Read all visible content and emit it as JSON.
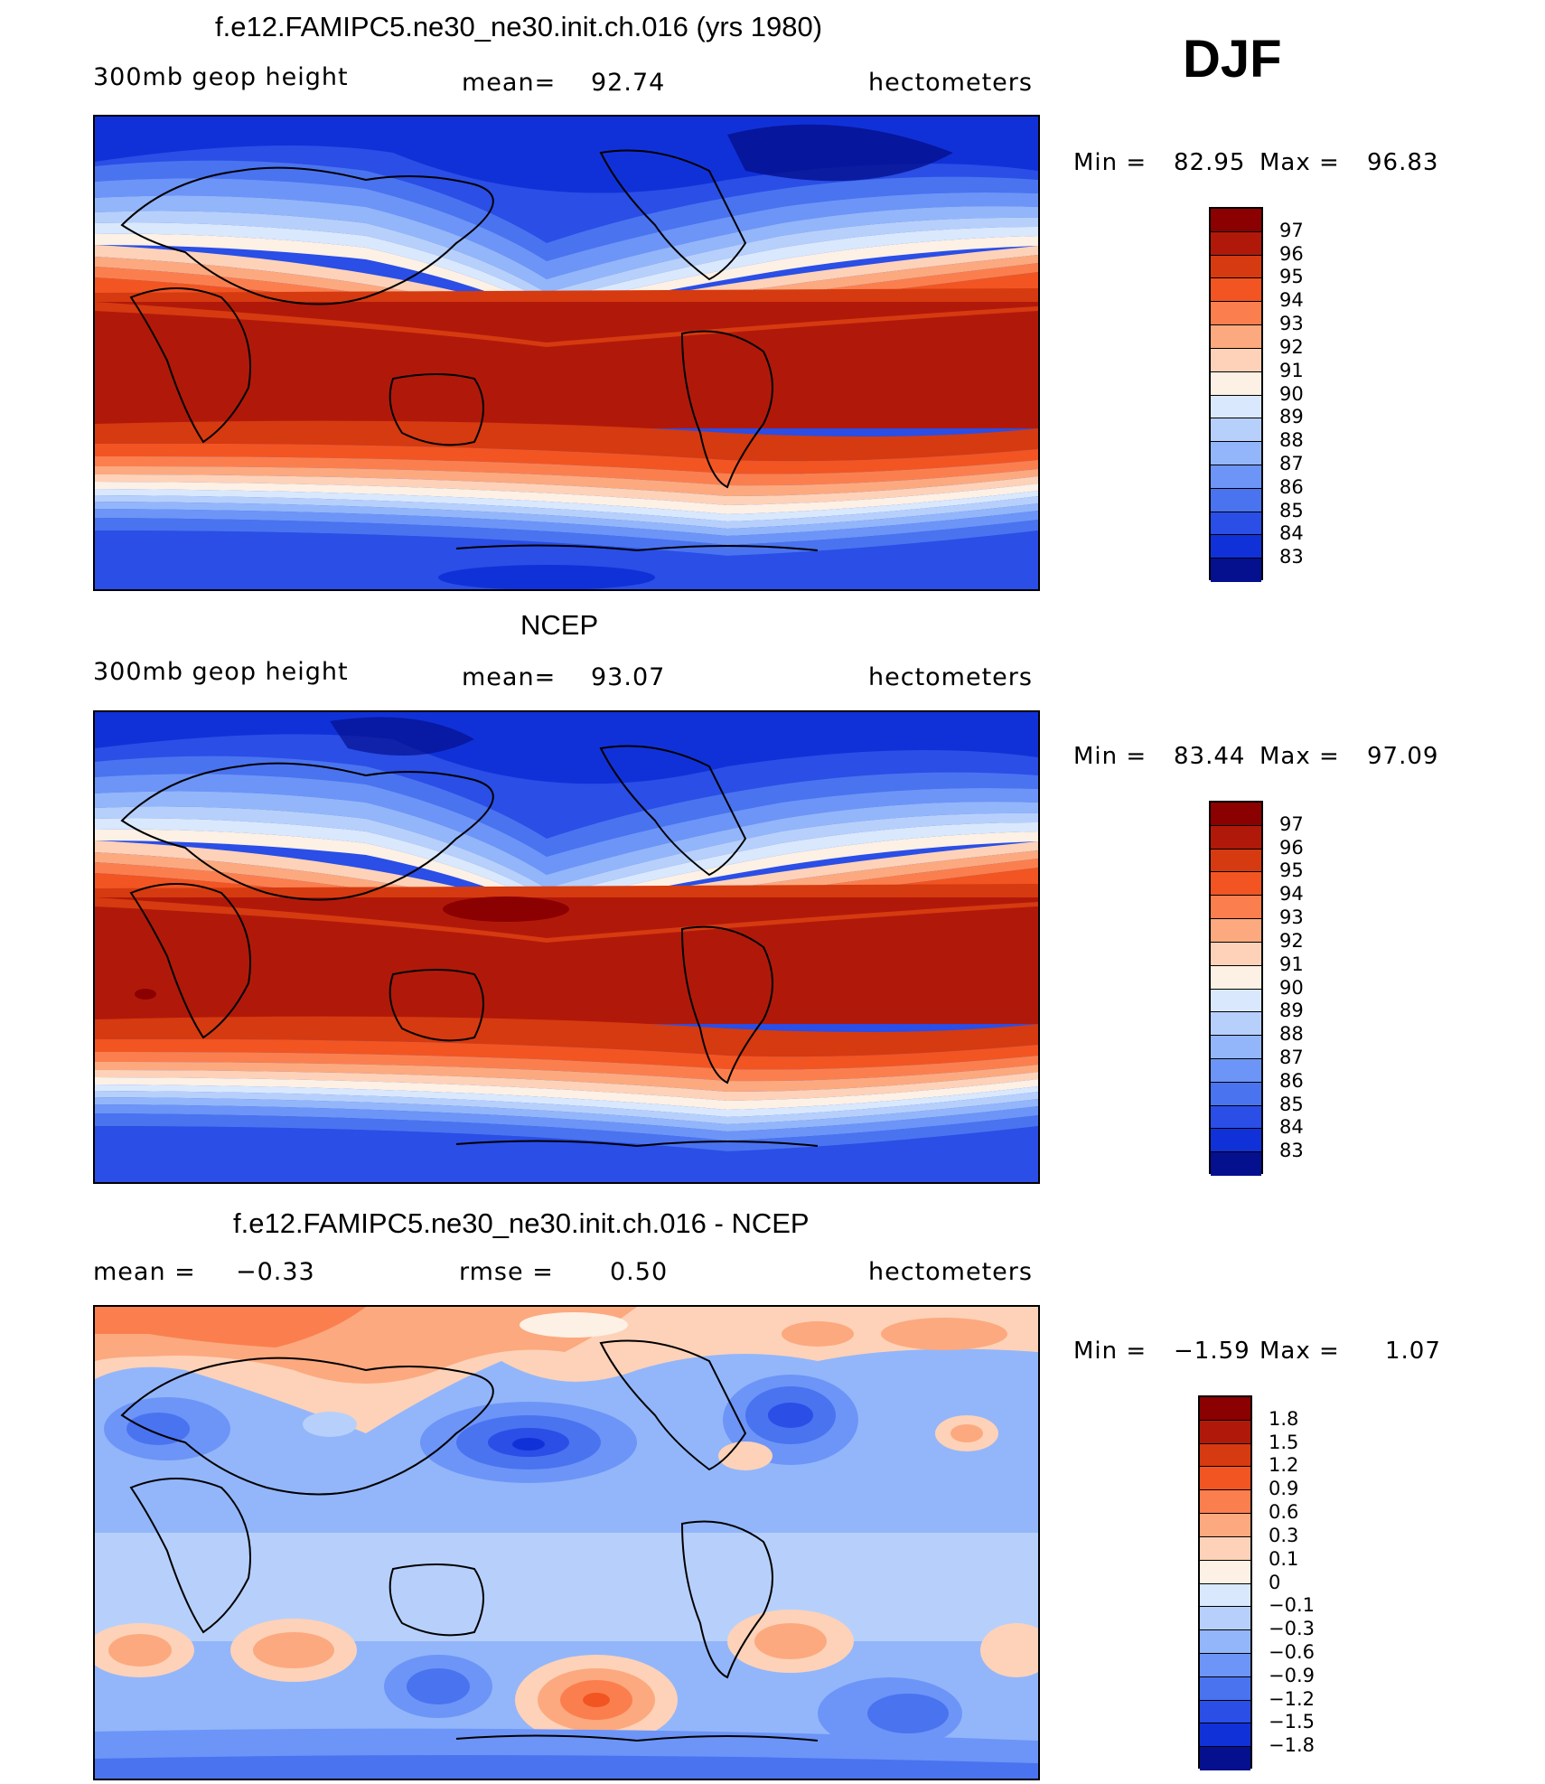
{
  "season_label": "DJF",
  "units": "hectometers",
  "panels": [
    {
      "title": "f.e12.FAMIPC5.ne30_ne30.init.ch.016 (yrs 1980)",
      "variable": "300mb geop height",
      "mean_label": "mean=",
      "mean_value": "92.74",
      "units": "hectometers",
      "min_label": "Min =",
      "min_value": "82.95",
      "max_label": "Max =",
      "max_value": "96.83",
      "colorbar_levels": [
        "97",
        "96",
        "95",
        "94",
        "93",
        "92",
        "91",
        "90",
        "89",
        "88",
        "87",
        "86",
        "85",
        "84",
        "83"
      ]
    },
    {
      "title": "NCEP",
      "variable": "300mb geop height",
      "mean_label": "mean=",
      "mean_value": "93.07",
      "units": "hectometers",
      "min_label": "Min =",
      "min_value": "83.44",
      "max_label": "Max =",
      "max_value": "97.09",
      "colorbar_levels": [
        "97",
        "96",
        "95",
        "94",
        "93",
        "92",
        "91",
        "90",
        "89",
        "88",
        "87",
        "86",
        "85",
        "84",
        "83"
      ]
    },
    {
      "title": "f.e12.FAMIPC5.ne30_ne30.init.ch.016 - NCEP",
      "mean_label": "mean =",
      "mean_value": "−0.33",
      "rmse_label": "rmse =",
      "rmse_value": "0.50",
      "units": "hectometers",
      "min_label": "Min =",
      "min_value": "−1.59",
      "max_label": "Max =",
      "max_value": "1.07",
      "colorbar_levels": [
        "1.8",
        "1.5",
        "1.2",
        "0.9",
        "0.6",
        "0.3",
        "0.1",
        "0",
        "−0.1",
        "−0.3",
        "−0.6",
        "−0.9",
        "−1.2",
        "−1.5",
        "−1.8"
      ]
    }
  ],
  "colors": {
    "abs_scale": [
      "#8b0000",
      "#b0190a",
      "#d63a10",
      "#f25522",
      "#fb7f4e",
      "#fca97f",
      "#fdd2b8",
      "#fdf0e4",
      "#d9e8fc",
      "#b7d0fb",
      "#93b6fa",
      "#6d95f7",
      "#4a73f0",
      "#2a4ee6",
      "#1131d8",
      "#04108e"
    ],
    "diff_scale": [
      "#8b0000",
      "#b0190a",
      "#d63a10",
      "#f25522",
      "#fb7f4e",
      "#fca97f",
      "#fdd2b8",
      "#fdf0e4",
      "#d9e8fc",
      "#b7d0fb",
      "#93b6fa",
      "#6d95f7",
      "#4a73f0",
      "#2a4ee6",
      "#1131d8",
      "#04108e"
    ]
  }
}
